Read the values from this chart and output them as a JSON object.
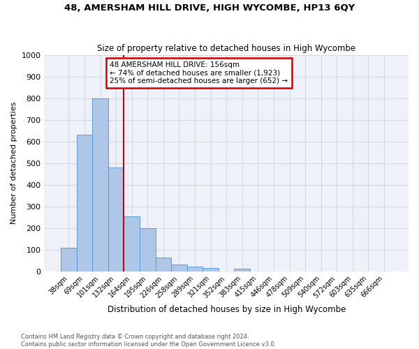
{
  "title": "48, AMERSHAM HILL DRIVE, HIGH WYCOMBE, HP13 6QY",
  "subtitle": "Size of property relative to detached houses in High Wycombe",
  "xlabel": "Distribution of detached houses by size in High Wycombe",
  "ylabel": "Number of detached properties",
  "footnote1": "Contains HM Land Registry data © Crown copyright and database right 2024.",
  "footnote2": "Contains public sector information licensed under the Open Government Licence v3.0.",
  "bar_labels": [
    "38sqm",
    "69sqm",
    "101sqm",
    "132sqm",
    "164sqm",
    "195sqm",
    "226sqm",
    "258sqm",
    "289sqm",
    "321sqm",
    "352sqm",
    "383sqm",
    "415sqm",
    "446sqm",
    "478sqm",
    "509sqm",
    "540sqm",
    "572sqm",
    "603sqm",
    "635sqm",
    "666sqm"
  ],
  "bar_values": [
    110,
    630,
    800,
    480,
    255,
    200,
    63,
    30,
    22,
    15,
    0,
    13,
    0,
    0,
    0,
    0,
    0,
    0,
    0,
    0,
    0
  ],
  "bar_color": "#aec6e8",
  "bar_edge_color": "#5b9bd5",
  "vline_index": 3.5,
  "vline_color": "#cc0000",
  "annotation_text": "48 AMERSHAM HILL DRIVE: 156sqm\n← 74% of detached houses are smaller (1,923)\n25% of semi-detached houses are larger (652) →",
  "annotation_box_color": "#cc0000",
  "ylim": [
    0,
    1000
  ],
  "yticks": [
    0,
    100,
    200,
    300,
    400,
    500,
    600,
    700,
    800,
    900,
    1000
  ],
  "grid_color": "#d0d8e8",
  "bg_color": "#eef2f8"
}
